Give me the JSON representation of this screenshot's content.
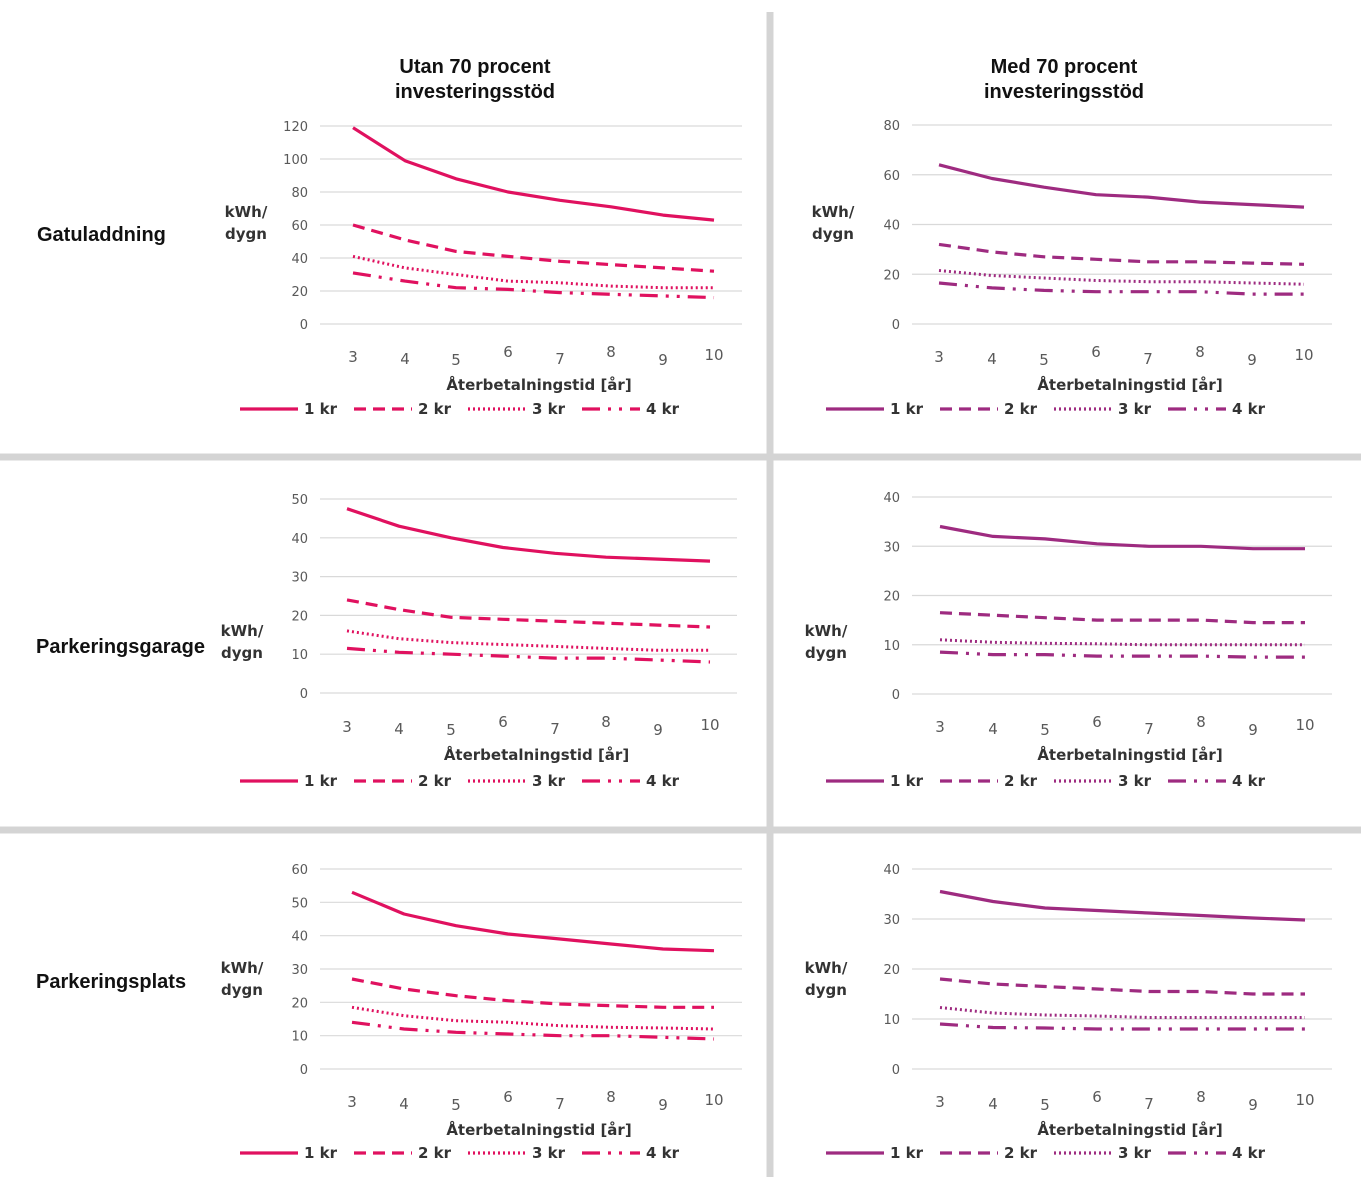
{
  "column_titles": [
    "Utan 70 procent investeringsstöd",
    "Med 70 procent investeringsstöd"
  ],
  "row_labels": [
    "Gatuladdning",
    "Parkeringsgarage",
    "Parkeringsplats"
  ],
  "colors": {
    "utan": "#e0115f",
    "med": "#9e2b80",
    "grid": "#d9d9d9",
    "divider": "#d4d4d4"
  },
  "chart_data": [
    {
      "type": "line",
      "row": "Gatuladdning",
      "column": "Utan 70 procent investeringsstöd",
      "xlabel": "Återbetalningstid [år]",
      "ylabel": "kWh/ dygn",
      "x": [
        3,
        4,
        5,
        6,
        7,
        8,
        9,
        10
      ],
      "ylim": [
        0,
        120
      ],
      "yticks": [
        0,
        20,
        40,
        60,
        80,
        100,
        120
      ],
      "series": [
        {
          "name": "1 kr",
          "values": [
            119,
            99,
            88,
            80,
            75,
            71,
            66,
            63
          ]
        },
        {
          "name": "2 kr",
          "values": [
            60,
            51,
            44,
            41,
            38,
            36,
            34,
            32
          ]
        },
        {
          "name": "3 kr",
          "values": [
            41,
            34,
            30,
            26,
            25,
            23,
            22,
            22
          ]
        },
        {
          "name": "4 kr",
          "values": [
            31,
            26,
            22,
            21,
            19,
            18,
            17,
            16
          ]
        }
      ]
    },
    {
      "type": "line",
      "row": "Gatuladdning",
      "column": "Med 70 procent investeringsstöd",
      "xlabel": "Återbetalningstid [år]",
      "ylabel": "kWh/ dygn",
      "x": [
        3,
        4,
        5,
        6,
        7,
        8,
        9,
        10
      ],
      "ylim": [
        0,
        80
      ],
      "yticks": [
        0,
        20,
        40,
        60,
        80
      ],
      "series": [
        {
          "name": "1 kr",
          "values": [
            64,
            58.5,
            55,
            52,
            51,
            49,
            48,
            47
          ]
        },
        {
          "name": "2 kr",
          "values": [
            32,
            29,
            27,
            26,
            25,
            25,
            24.5,
            24
          ]
        },
        {
          "name": "3 kr",
          "values": [
            21.5,
            19.5,
            18.5,
            17.5,
            17,
            17,
            16.5,
            16
          ]
        },
        {
          "name": "4 kr",
          "values": [
            16.5,
            14.5,
            13.5,
            13,
            13,
            13,
            12,
            12
          ]
        }
      ]
    },
    {
      "type": "line",
      "row": "Parkeringsgarage",
      "column": "Utan 70 procent investeringsstöd",
      "xlabel": "Återbetalningstid [år]",
      "ylabel": "kWh/ dygn",
      "x": [
        3,
        4,
        5,
        6,
        7,
        8,
        9,
        10
      ],
      "ylim": [
        0,
        50
      ],
      "yticks": [
        0,
        10,
        20,
        30,
        40,
        50
      ],
      "series": [
        {
          "name": "1 kr",
          "values": [
            47.5,
            43,
            40,
            37.5,
            36,
            35,
            34.5,
            34
          ]
        },
        {
          "name": "2 kr",
          "values": [
            24,
            21.5,
            19.5,
            19,
            18.5,
            18,
            17.5,
            17
          ]
        },
        {
          "name": "3 kr",
          "values": [
            16,
            14,
            13,
            12.5,
            12,
            11.5,
            11,
            11
          ]
        },
        {
          "name": "4 kr",
          "values": [
            11.5,
            10.5,
            10,
            9.5,
            9,
            9,
            8.5,
            8
          ]
        }
      ]
    },
    {
      "type": "line",
      "row": "Parkeringsgarage",
      "column": "Med 70 procent investeringsstöd",
      "xlabel": "Återbetalningstid [år]",
      "ylabel": "kWh/ dygn",
      "x": [
        3,
        4,
        5,
        6,
        7,
        8,
        9,
        10
      ],
      "ylim": [
        0,
        40
      ],
      "yticks": [
        0,
        10,
        20,
        30,
        40
      ],
      "series": [
        {
          "name": "1 kr",
          "values": [
            34,
            32,
            31.5,
            30.5,
            30,
            30,
            29.5,
            29.5
          ]
        },
        {
          "name": "2 kr",
          "values": [
            16.5,
            16,
            15.5,
            15,
            15,
            15,
            14.5,
            14.5
          ]
        },
        {
          "name": "3 kr",
          "values": [
            11,
            10.5,
            10.3,
            10.2,
            10,
            10,
            10,
            10
          ]
        },
        {
          "name": "4 kr",
          "values": [
            8.5,
            8,
            8,
            7.7,
            7.7,
            7.7,
            7.5,
            7.5
          ]
        }
      ]
    },
    {
      "type": "line",
      "row": "Parkeringsplats",
      "column": "Utan 70 procent investeringsstöd",
      "xlabel": "Återbetalningstid [år]",
      "ylabel": "kWh/ dygn",
      "x": [
        3,
        4,
        5,
        6,
        7,
        8,
        9,
        10
      ],
      "ylim": [
        0,
        60
      ],
      "yticks": [
        0,
        10,
        20,
        30,
        40,
        50,
        60
      ],
      "series": [
        {
          "name": "1 kr",
          "values": [
            53,
            46.5,
            43,
            40.5,
            39,
            37.5,
            36,
            35.5
          ]
        },
        {
          "name": "2 kr",
          "values": [
            27,
            24,
            22,
            20.5,
            19.5,
            19,
            18.5,
            18.5
          ]
        },
        {
          "name": "3 kr",
          "values": [
            18.5,
            16,
            14.5,
            14,
            13,
            12.5,
            12.3,
            12
          ]
        },
        {
          "name": "4 kr",
          "values": [
            14,
            12,
            11,
            10.5,
            10,
            10,
            9.5,
            9
          ]
        }
      ]
    },
    {
      "type": "line",
      "row": "Parkeringsplats",
      "column": "Med 70 procent investeringsstöd",
      "xlabel": "Återbetalningstid [år]",
      "ylabel": "kWh/ dygn",
      "x": [
        3,
        4,
        5,
        6,
        7,
        8,
        9,
        10
      ],
      "ylim": [
        0,
        40
      ],
      "yticks": [
        0,
        10,
        20,
        30,
        40
      ],
      "series": [
        {
          "name": "1 kr",
          "values": [
            35.5,
            33.5,
            32.2,
            31.7,
            31.2,
            30.7,
            30.2,
            29.8
          ]
        },
        {
          "name": "2 kr",
          "values": [
            18,
            17,
            16.5,
            16,
            15.5,
            15.5,
            15,
            15
          ]
        },
        {
          "name": "3 kr",
          "values": [
            12.3,
            11.2,
            10.8,
            10.6,
            10.3,
            10.3,
            10.3,
            10.3
          ]
        },
        {
          "name": "4 kr",
          "values": [
            9,
            8.3,
            8.2,
            8,
            8,
            8,
            8,
            8
          ]
        }
      ]
    }
  ]
}
